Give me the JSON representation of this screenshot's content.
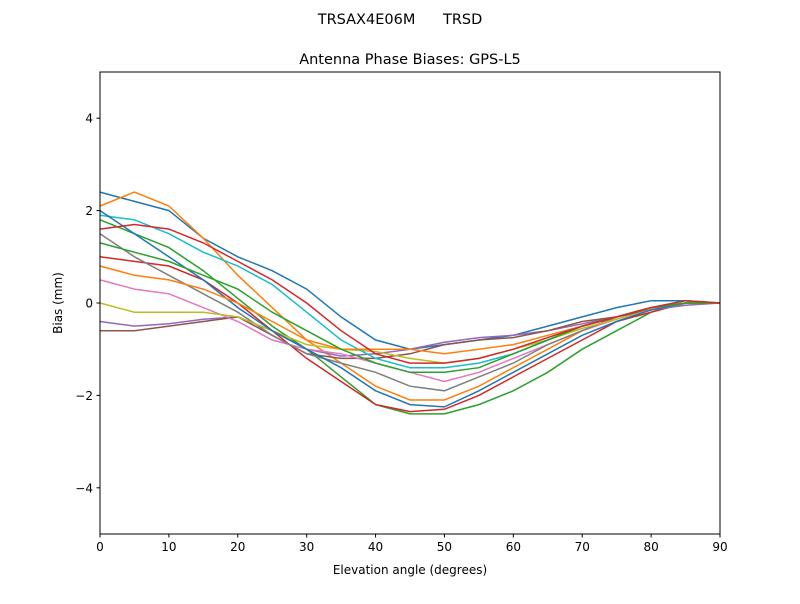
{
  "chart_data": {
    "type": "line",
    "suptitle": "TRSAX4E06M      TRSD",
    "title": "Antenna Phase Biases: GPS-L5",
    "xlabel": "Elevation angle (degrees)",
    "ylabel": "Bias (mm)",
    "xlim": [
      0,
      90
    ],
    "ylim": [
      -5,
      5
    ],
    "xticks": [
      0,
      10,
      20,
      30,
      40,
      50,
      60,
      70,
      80,
      90
    ],
    "yticks": [
      -4,
      -2,
      0,
      2,
      4
    ],
    "ytick_labels": [
      "−4",
      "−2",
      "0",
      "2",
      "4"
    ],
    "grid": false,
    "colors": [
      "#1f77b4",
      "#ff7f0e",
      "#2ca02c",
      "#d62728",
      "#9467bd",
      "#8c564b",
      "#e377c2",
      "#7f7f7f",
      "#bcbd22",
      "#17becf"
    ],
    "x": [
      0,
      5,
      10,
      15,
      20,
      25,
      30,
      35,
      40,
      45,
      50,
      55,
      60,
      65,
      70,
      75,
      80,
      85,
      90
    ],
    "series": [
      {
        "values": [
          2.4,
          2.2,
          2.0,
          1.4,
          1.0,
          0.7,
          0.3,
          -0.3,
          -0.8,
          -1.0,
          -0.9,
          -0.8,
          -0.7,
          -0.5,
          -0.3,
          -0.1,
          0.05,
          0.05,
          0
        ]
      },
      {
        "values": [
          2.1,
          2.4,
          2.1,
          1.4,
          0.6,
          -0.1,
          -0.8,
          -1.3,
          -1.8,
          -2.1,
          -2.1,
          -1.8,
          -1.4,
          -1.0,
          -0.6,
          -0.3,
          -0.1,
          0.05,
          0
        ]
      },
      {
        "values": [
          1.8,
          1.5,
          1.2,
          0.7,
          0.1,
          -0.5,
          -1.0,
          -1.6,
          -2.2,
          -2.4,
          -2.4,
          -2.2,
          -1.9,
          -1.5,
          -1.0,
          -0.6,
          -0.2,
          0,
          0
        ]
      },
      {
        "values": [
          1.0,
          0.9,
          0.8,
          0.5,
          0.0,
          -0.6,
          -1.2,
          -1.7,
          -2.2,
          -2.35,
          -2.3,
          -2.0,
          -1.6,
          -1.2,
          -0.8,
          -0.4,
          -0.2,
          0,
          0
        ]
      },
      {
        "values": [
          -0.4,
          -0.5,
          -0.45,
          -0.35,
          -0.3,
          -0.6,
          -1.0,
          -1.15,
          -1.1,
          -1.0,
          -0.85,
          -0.75,
          -0.7,
          -0.6,
          -0.45,
          -0.3,
          -0.15,
          -0.05,
          0
        ]
      },
      {
        "values": [
          -0.6,
          -0.6,
          -0.5,
          -0.4,
          -0.3,
          -0.7,
          -1.1,
          -1.2,
          -1.2,
          -1.1,
          -0.9,
          -0.8,
          -0.75,
          -0.6,
          -0.4,
          -0.3,
          -0.15,
          0,
          0
        ]
      },
      {
        "values": [
          0.5,
          0.3,
          0.2,
          -0.1,
          -0.4,
          -0.8,
          -1.0,
          -1.1,
          -1.3,
          -1.5,
          -1.7,
          -1.5,
          -1.2,
          -0.9,
          -0.6,
          -0.35,
          -0.15,
          0,
          0
        ]
      },
      {
        "values": [
          1.5,
          1.0,
          0.6,
          0.2,
          -0.2,
          -0.7,
          -1.1,
          -1.3,
          -1.5,
          -1.8,
          -1.9,
          -1.6,
          -1.3,
          -0.9,
          -0.6,
          -0.3,
          -0.1,
          0,
          0
        ]
      },
      {
        "values": [
          0.0,
          -0.2,
          -0.2,
          -0.2,
          -0.3,
          -0.6,
          -0.9,
          -1.0,
          -1.05,
          -1.2,
          -1.3,
          -1.2,
          -1.0,
          -0.8,
          -0.55,
          -0.35,
          -0.15,
          0,
          0
        ]
      },
      {
        "values": [
          1.9,
          1.8,
          1.5,
          1.1,
          0.8,
          0.4,
          -0.2,
          -0.8,
          -1.2,
          -1.4,
          -1.4,
          -1.3,
          -1.1,
          -0.8,
          -0.5,
          -0.3,
          -0.1,
          0.05,
          0
        ]
      },
      {
        "values": [
          2.0,
          1.5,
          1.0,
          0.5,
          -0.1,
          -0.6,
          -1.0,
          -1.4,
          -1.9,
          -2.2,
          -2.25,
          -1.9,
          -1.5,
          -1.1,
          -0.7,
          -0.4,
          -0.15,
          0,
          0
        ]
      },
      {
        "values": [
          0.8,
          0.6,
          0.5,
          0.3,
          0.0,
          -0.4,
          -0.8,
          -1.0,
          -1.0,
          -1.0,
          -1.1,
          -1.0,
          -0.9,
          -0.7,
          -0.5,
          -0.3,
          -0.1,
          0,
          0
        ]
      },
      {
        "values": [
          1.3,
          1.1,
          0.9,
          0.6,
          0.3,
          -0.2,
          -0.6,
          -1.0,
          -1.3,
          -1.5,
          -1.5,
          -1.4,
          -1.1,
          -0.8,
          -0.5,
          -0.3,
          -0.1,
          0,
          0
        ]
      },
      {
        "values": [
          1.6,
          1.7,
          1.6,
          1.3,
          0.9,
          0.5,
          0.0,
          -0.6,
          -1.1,
          -1.3,
          -1.3,
          -1.2,
          -1.0,
          -0.75,
          -0.5,
          -0.3,
          -0.1,
          0.05,
          0
        ]
      }
    ]
  }
}
